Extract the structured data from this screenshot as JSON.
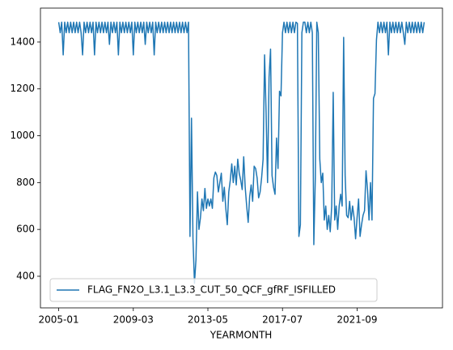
{
  "chart_data": {
    "type": "line",
    "x_label": "YEARMONTH",
    "categories": [
      "2005-01",
      null,
      null,
      null,
      null,
      null,
      null,
      null,
      null,
      null,
      null,
      null,
      null,
      null,
      null,
      null,
      null,
      null,
      null,
      null,
      null,
      null,
      null,
      null,
      null,
      null,
      null,
      null,
      null,
      null,
      null,
      null,
      null,
      null,
      null,
      null,
      null,
      null,
      null,
      null,
      null,
      null,
      null,
      null,
      null,
      null,
      null,
      null,
      null,
      null,
      "2009-03",
      null,
      null,
      null,
      null,
      null,
      null,
      null,
      null,
      null,
      null,
      null,
      null,
      null,
      null,
      null,
      null,
      null,
      null,
      null,
      null,
      null,
      null,
      null,
      null,
      null,
      null,
      null,
      null,
      null,
      null,
      null,
      null,
      null,
      null,
      null,
      null,
      null,
      null,
      null,
      null,
      null,
      null,
      null,
      null,
      null,
      null,
      null,
      null,
      null,
      "2013-05",
      null,
      null,
      null,
      null,
      null,
      null,
      null,
      null,
      null,
      null,
      null,
      null,
      null,
      null,
      null,
      null,
      null,
      null,
      null,
      null,
      null,
      null,
      null,
      null,
      null,
      null,
      null,
      null,
      null,
      null,
      null,
      null,
      null,
      null,
      null,
      null,
      null,
      null,
      null,
      null,
      null,
      null,
      null,
      null,
      null,
      null,
      null,
      null,
      null,
      "2017-07",
      null,
      null,
      null,
      null,
      null,
      null,
      null,
      null,
      null,
      null,
      null,
      null,
      null,
      null,
      null,
      null,
      null,
      null,
      null,
      null,
      null,
      null,
      null,
      null,
      null,
      null,
      null,
      null,
      null,
      null,
      null,
      null,
      null,
      null,
      null,
      null,
      null,
      null,
      null,
      null,
      null,
      null,
      null,
      null,
      null,
      null,
      null,
      null,
      null,
      "2021-09",
      null,
      null,
      null,
      null,
      null,
      null,
      null,
      null,
      null,
      null,
      null,
      null,
      null,
      null,
      null,
      null,
      null,
      null,
      null,
      null,
      null,
      null,
      null,
      null,
      null,
      null,
      null,
      null,
      null,
      null,
      null,
      null,
      null,
      null,
      null,
      null,
      null,
      null,
      null,
      null,
      null,
      null,
      null,
      null,
      null
    ],
    "series": [
      {
        "name": "FLAG_FN2O_L3.1_L3.3_CUT_50_QCF_gfRF_ISFILLED",
        "color": "#1f77b4",
        "values": [
          1485,
          1440,
          1485,
          1345,
          1485,
          1440,
          1485,
          1440,
          1485,
          1440,
          1485,
          1440,
          1485,
          1440,
          1485,
          1440,
          1345,
          1485,
          1440,
          1485,
          1440,
          1485,
          1440,
          1485,
          1345,
          1485,
          1440,
          1485,
          1440,
          1485,
          1440,
          1485,
          1440,
          1485,
          1390,
          1485,
          1440,
          1485,
          1440,
          1485,
          1345,
          1485,
          1440,
          1485,
          1440,
          1485,
          1440,
          1485,
          1440,
          1485,
          1345,
          1485,
          1440,
          1485,
          1440,
          1485,
          1440,
          1485,
          1390,
          1485,
          1440,
          1485,
          1440,
          1485,
          1345,
          1485,
          1440,
          1485,
          1440,
          1485,
          1440,
          1485,
          1440,
          1485,
          1440,
          1485,
          1440,
          1485,
          1440,
          1485,
          1440,
          1485,
          1440,
          1485,
          1440,
          1485,
          1440,
          1485,
          570,
          1075,
          560,
          370,
          470,
          760,
          600,
          650,
          730,
          680,
          775,
          690,
          730,
          700,
          730,
          690,
          820,
          845,
          830,
          760,
          800,
          840,
          720,
          780,
          690,
          620,
          760,
          810,
          880,
          800,
          870,
          790,
          900,
          840,
          810,
          770,
          910,
          780,
          700,
          630,
          740,
          790,
          720,
          870,
          860,
          820,
          735,
          760,
          820,
          900,
          1345,
          1100,
          800,
          1250,
          1370,
          830,
          780,
          750,
          990,
          860,
          1190,
          1170,
          1440,
          1485,
          1440,
          1485,
          1440,
          1485,
          1440,
          1485,
          1440,
          1485,
          1480,
          570,
          620,
          1440,
          1485,
          1485,
          1440,
          1485,
          1440,
          1485,
          1440,
          535,
          820,
          1485,
          1440,
          900,
          800,
          840,
          640,
          700,
          600,
          660,
          590,
          700,
          1185,
          640,
          700,
          600,
          700,
          750,
          700,
          1420,
          830,
          660,
          650,
          720,
          640,
          700,
          650,
          560,
          650,
          730,
          570,
          620,
          660,
          680,
          850,
          770,
          640,
          800,
          640,
          1160,
          1180,
          1410,
          1485,
          1440,
          1485,
          1440,
          1485,
          1440,
          1485,
          1345,
          1485,
          1440,
          1485,
          1440,
          1485,
          1440,
          1485,
          1440,
          1485,
          1440,
          1390,
          1485,
          1440,
          1485,
          1440,
          1485,
          1440,
          1485,
          1440,
          1485,
          1440,
          1485,
          1440,
          1485
        ]
      }
    ],
    "xlim": [
      -12.25,
      257.25
    ],
    "ylim": [
      265,
      1545
    ],
    "yticks": [
      400,
      600,
      800,
      1000,
      1200,
      1400
    ],
    "legend": "lower left"
  }
}
